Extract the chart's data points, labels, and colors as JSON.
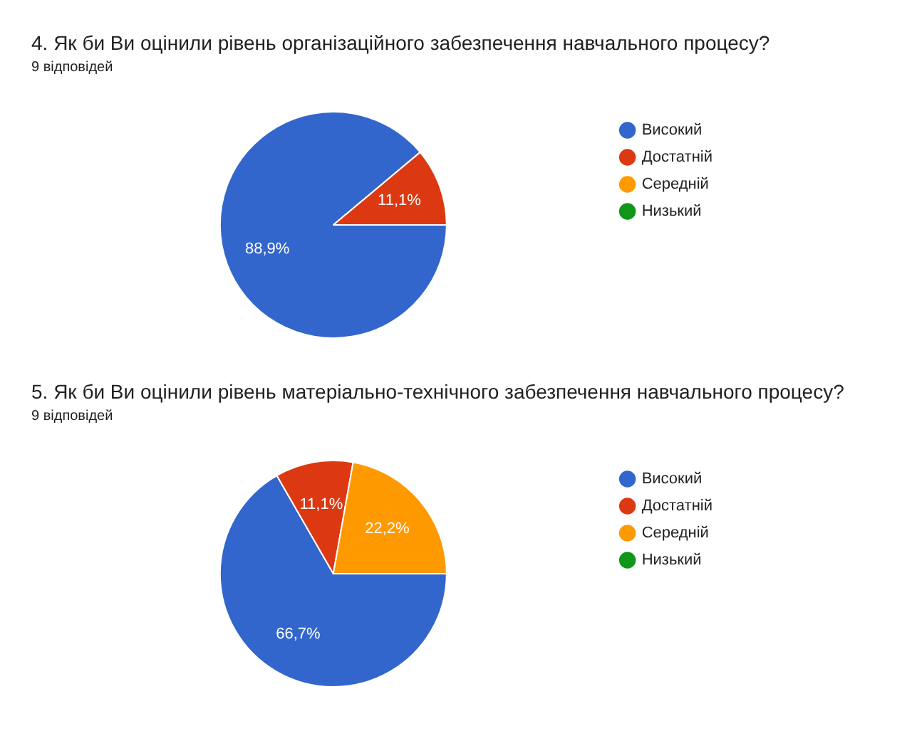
{
  "chart_data": [
    {
      "type": "pie",
      "title": "4. Як би Ви оцінили рівень організаційного забезпечення  навчального процесу?",
      "subtitle": "9 відповідей",
      "categories": [
        "Високий",
        "Достатній",
        "Середній",
        "Низький"
      ],
      "values": [
        88.9,
        11.1,
        0,
        0
      ],
      "colors": [
        "#3366cc",
        "#dc3912",
        "#ff9900",
        "#109618"
      ],
      "value_labels": [
        "88,9%",
        "11,1%",
        null,
        null
      ],
      "legend": "right"
    },
    {
      "type": "pie",
      "title": "5. Як би Ви оцінили рівень матеріально-технічного забезпечення  навчального процесу?",
      "subtitle": "9 відповідей",
      "categories": [
        "Високий",
        "Достатній",
        "Середній",
        "Низький"
      ],
      "values": [
        66.7,
        11.1,
        22.2,
        0
      ],
      "colors": [
        "#3366cc",
        "#dc3912",
        "#ff9900",
        "#109618"
      ],
      "value_labels": [
        "66,7%",
        "11,1%",
        "22,2%",
        null
      ],
      "legend": "right"
    }
  ]
}
